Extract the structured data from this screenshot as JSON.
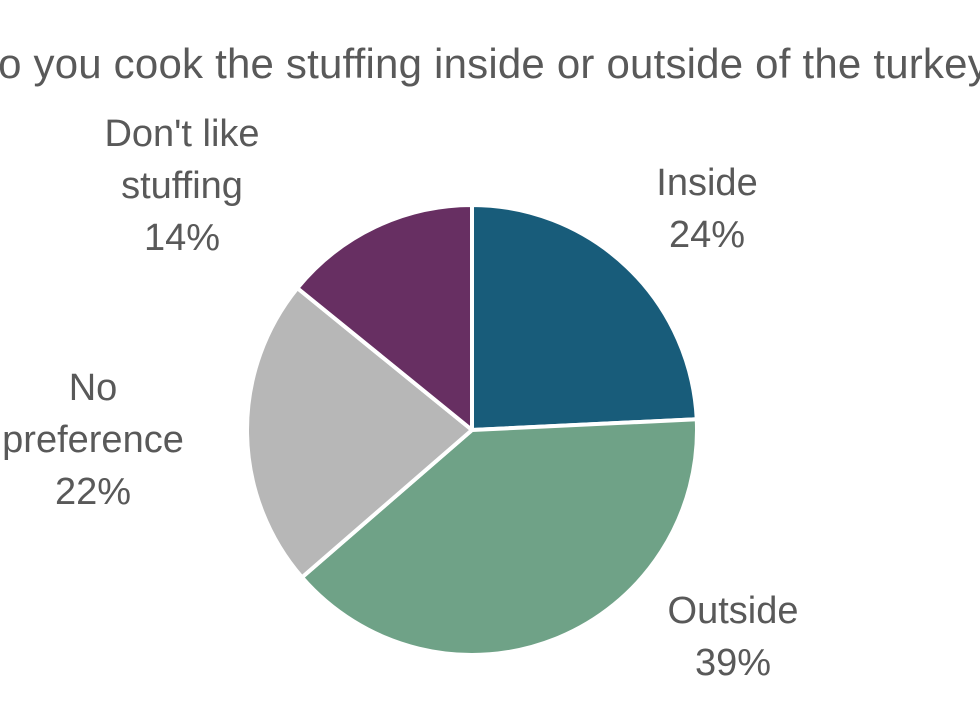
{
  "chart_data": {
    "type": "pie",
    "title": "Do you cook the stuffing inside or outside of the turkey?",
    "slices": [
      {
        "label_lines": [
          "Inside"
        ],
        "value": 24,
        "value_label": "24%",
        "color": "#185C7A"
      },
      {
        "label_lines": [
          "Outside"
        ],
        "value": 39,
        "value_label": "39%",
        "color": "#6FA287"
      },
      {
        "label_lines": [
          "No",
          "preference"
        ],
        "value": 22,
        "value_label": "22%",
        "color": "#B7B7B7"
      },
      {
        "label_lines": [
          "Don't like",
          "stuffing"
        ],
        "value": 14,
        "value_label": "14%",
        "color": "#672F62"
      }
    ],
    "legend": "none",
    "data_labels": "outside"
  }
}
